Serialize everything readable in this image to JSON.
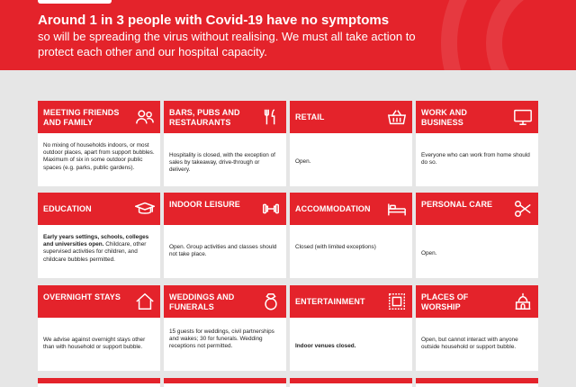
{
  "banner": {
    "headline": "Around 1 in 3 people with Covid-19 have no symptoms",
    "subline": "so will be spreading the virus without realising. We must all take action to protect each other and our hospital capacity."
  },
  "categories": [
    {
      "title": "MEETING FRIENDS AND FAMILY",
      "icon": "people-icon",
      "text": "No mixing of households indoors, or most outdoor places, apart from support bubbles. Maximum of six in some outdoor public spaces (e.g. parks, public gardens)."
    },
    {
      "title": "BARS, PUBS AND RESTAURANTS",
      "icon": "cutlery-icon",
      "text": "Hospitality is closed, with the exception of sales by takeaway, drive-through or delivery."
    },
    {
      "title": "RETAIL",
      "icon": "shopping-basket-icon",
      "text": "Open."
    },
    {
      "title": "WORK AND BUSINESS",
      "icon": "monitor-icon",
      "text": "Everyone who can work from home should do so."
    },
    {
      "title": "EDUCATION",
      "icon": "mortarboard-icon",
      "text_bold": "Early years settings, schools, colleges and universities open.",
      "text": " Childcare, other supervised activities for children, and childcare bubbles permitted."
    },
    {
      "title": "INDOOR LEISURE",
      "icon": "dumbbell-icon",
      "text": "Open. Group activities and classes should not take place."
    },
    {
      "title": "ACCOMMODATION",
      "icon": "bed-icon",
      "text": "Closed (with limited exceptions)"
    },
    {
      "title": "PERSONAL CARE",
      "icon": "scissors-icon",
      "text": "Open."
    },
    {
      "title": "OVERNIGHT STAYS",
      "icon": "house-icon",
      "text": "We advise against overnight stays other than with household or support bubble."
    },
    {
      "title": "WEDDINGS AND FUNERALS",
      "icon": "ring-icon",
      "text": "15 guests for weddings, civil partnerships and wakes; 30 for funerals. Wedding receptions not permitted."
    },
    {
      "title": "ENTERTAINMENT",
      "icon": "ticket-icon",
      "text": "Indoor venues closed."
    },
    {
      "title": "PLACES OF WORSHIP",
      "icon": "place-of-worship-icon",
      "text": "Open, but cannot interact with anyone outside household or support bubble."
    }
  ]
}
